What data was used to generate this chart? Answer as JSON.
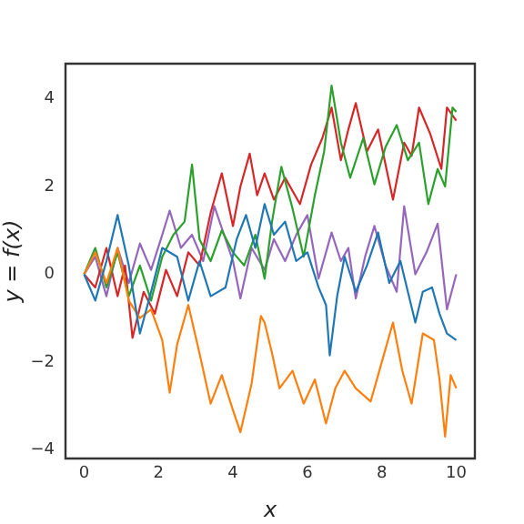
{
  "chart_data": {
    "type": "line",
    "xlabel": "x",
    "ylabel": "y = f(x)",
    "xlim": [
      -0.5,
      10.5
    ],
    "ylim": [
      -4.2,
      4.8
    ],
    "xticks": [
      0,
      2,
      4,
      6,
      8,
      10
    ],
    "yticks": [
      -4,
      -2,
      0,
      2,
      4
    ],
    "grid": false,
    "legend": false,
    "marker": "none",
    "line_style": "solid",
    "series": [
      {
        "color": "#1f77b4",
        "x": [
          0,
          0.3,
          0.6,
          0.9,
          1.2,
          1.5,
          1.8,
          2.1,
          2.5,
          2.8,
          3.1,
          3.4,
          3.8,
          4.1,
          4.35,
          4.6,
          4.85,
          5.1,
          5.4,
          5.7,
          6.0,
          6.3,
          6.5,
          6.6,
          6.8,
          7.0,
          7.3,
          7.6,
          7.9,
          8.2,
          8.5,
          8.9,
          9.1,
          9.35,
          9.55,
          9.75,
          10
        ],
        "values": [
          0,
          -0.6,
          0.3,
          1.35,
          0.2,
          -1.35,
          -0.4,
          0.6,
          0.4,
          -0.6,
          0.3,
          -0.5,
          -0.3,
          0.8,
          1.35,
          0.6,
          1.6,
          0.9,
          1.2,
          0.3,
          0.5,
          -0.3,
          -0.7,
          -1.85,
          -0.5,
          0.4,
          -0.4,
          0.2,
          0.95,
          -0.2,
          0.3,
          -1.1,
          -0.4,
          -0.3,
          -0.9,
          -1.35,
          -1.5
        ]
      },
      {
        "color": "#ff7f0e",
        "x": [
          0,
          0.3,
          0.6,
          0.9,
          1.2,
          1.5,
          1.8,
          2.1,
          2.3,
          2.5,
          2.8,
          3.1,
          3.4,
          3.7,
          4.0,
          4.2,
          4.5,
          4.75,
          4.85,
          5.05,
          5.25,
          5.6,
          5.9,
          6.2,
          6.5,
          6.75,
          7.0,
          7.3,
          7.7,
          8.0,
          8.3,
          8.55,
          8.8,
          9.1,
          9.4,
          9.55,
          9.7,
          9.85,
          10
        ],
        "values": [
          0,
          0.5,
          -0.2,
          0.6,
          -0.6,
          -1.0,
          -0.8,
          -1.5,
          -2.7,
          -1.6,
          -0.7,
          -1.8,
          -2.95,
          -2.3,
          -3.1,
          -3.6,
          -2.5,
          -0.95,
          -1.1,
          -1.8,
          -2.6,
          -2.2,
          -2.95,
          -2.4,
          -3.4,
          -2.6,
          -2.2,
          -2.6,
          -2.9,
          -2.0,
          -1.1,
          -2.2,
          -2.95,
          -1.35,
          -1.5,
          -2.4,
          -3.7,
          -2.3,
          -2.6
        ]
      },
      {
        "color": "#2ca02c",
        "x": [
          0,
          0.3,
          0.6,
          0.9,
          1.2,
          1.5,
          1.8,
          2.1,
          2.4,
          2.7,
          2.9,
          3.1,
          3.4,
          3.7,
          4.0,
          4.3,
          4.6,
          4.85,
          5.05,
          5.3,
          5.6,
          5.9,
          6.2,
          6.45,
          6.65,
          6.9,
          7.15,
          7.5,
          7.8,
          8.1,
          8.4,
          8.7,
          9.0,
          9.25,
          9.5,
          9.7,
          9.9,
          10
        ],
        "values": [
          0,
          0.6,
          -0.3,
          0.5,
          -0.5,
          0.2,
          -0.6,
          0.4,
          0.9,
          1.2,
          2.5,
          0.8,
          0.3,
          1.0,
          0.5,
          0.2,
          0.9,
          -0.1,
          1.2,
          2.45,
          1.5,
          0.4,
          1.8,
          2.8,
          4.3,
          3.0,
          2.2,
          3.1,
          2.05,
          2.9,
          3.4,
          2.6,
          3.0,
          1.6,
          2.4,
          2.0,
          3.8,
          3.7
        ]
      },
      {
        "color": "#d62728",
        "x": [
          0,
          0.3,
          0.6,
          0.9,
          1.1,
          1.3,
          1.6,
          1.9,
          2.2,
          2.5,
          2.8,
          3.1,
          3.4,
          3.7,
          4.0,
          4.2,
          4.45,
          4.65,
          4.85,
          5.1,
          5.4,
          5.8,
          6.1,
          6.4,
          6.65,
          6.9,
          7.1,
          7.3,
          7.6,
          7.9,
          8.1,
          8.3,
          8.6,
          8.8,
          9.0,
          9.3,
          9.6,
          9.75,
          10
        ],
        "values": [
          0,
          -0.3,
          0.6,
          -0.5,
          0.2,
          -1.45,
          -0.4,
          -0.9,
          0.1,
          -0.5,
          0.5,
          0.2,
          1.4,
          2.3,
          1.1,
          2.0,
          2.75,
          1.8,
          2.3,
          1.7,
          2.2,
          1.6,
          2.5,
          3.1,
          3.8,
          2.6,
          3.3,
          3.9,
          2.8,
          3.3,
          2.5,
          1.7,
          3.0,
          2.7,
          3.8,
          3.2,
          2.4,
          3.8,
          3.5
        ]
      },
      {
        "color": "#9467bd",
        "x": [
          0,
          0.3,
          0.6,
          0.9,
          1.2,
          1.5,
          1.8,
          2.1,
          2.3,
          2.6,
          2.9,
          3.2,
          3.5,
          3.8,
          4.0,
          4.2,
          4.5,
          4.85,
          5.1,
          5.4,
          5.7,
          6.0,
          6.3,
          6.65,
          6.9,
          7.1,
          7.3,
          7.55,
          7.8,
          8.1,
          8.4,
          8.6,
          8.9,
          9.2,
          9.5,
          9.75,
          10
        ],
        "values": [
          0,
          0.4,
          -0.5,
          0.6,
          -0.2,
          0.7,
          0.1,
          0.9,
          1.45,
          0.6,
          0.9,
          0.3,
          1.55,
          0.8,
          0.3,
          -0.55,
          0.6,
          0.1,
          0.8,
          0.3,
          0.9,
          1.35,
          -0.1,
          0.95,
          0.3,
          0.6,
          -0.55,
          0.4,
          1.1,
          0.2,
          -0.4,
          1.55,
          0,
          0.5,
          1.15,
          -0.8,
          0
        ]
      }
    ]
  }
}
